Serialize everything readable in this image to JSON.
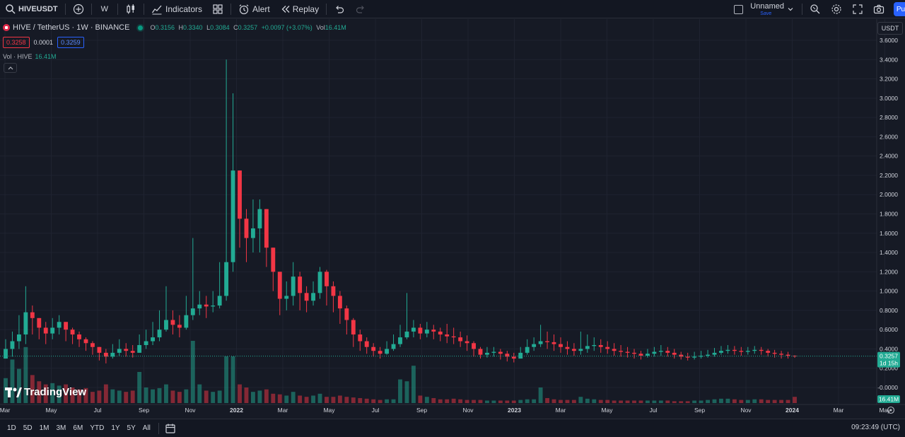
{
  "toolbar": {
    "symbol": "HIVEUSDT",
    "interval": "W",
    "indicators_label": "Indicators",
    "alert_label": "Alert",
    "replay_label": "Replay",
    "layout_name": "Unnamed",
    "layout_save": "Save",
    "publish_label": "Pu"
  },
  "legend": {
    "title": "HIVE / TetherUS · 1W · BINANCE",
    "open_label": "O",
    "open": "0.3156",
    "high_label": "H",
    "high": "0.3340",
    "low_label": "L",
    "low": "0.3084",
    "close_label": "C",
    "close": "0.3257",
    "change": "+0.0097 (+3.07%)",
    "vol_label": "Vol",
    "vol": "16.41M"
  },
  "quote": {
    "sell": "0.3258",
    "spread": "0.0001",
    "buy": "0.3259"
  },
  "volume_legend": {
    "label": "Vol · HIVE",
    "value": "16.41M"
  },
  "brand": "TradingView",
  "axis": {
    "currency": "USDT",
    "last_price": "0.3257",
    "countdown": "1d 15h",
    "last_volume": "16.41M"
  },
  "bottom": {
    "ranges": [
      "1D",
      "5D",
      "1M",
      "3M",
      "6M",
      "YTD",
      "1Y",
      "5Y",
      "All"
    ],
    "clock": "09:23:49 (UTC)"
  },
  "colors": {
    "up": "#22ab94",
    "down": "#f23645",
    "bg": "#161a25",
    "grid": "#1f2330",
    "accent": "#2962ff"
  },
  "chart_data": {
    "type": "candlestick",
    "interval": "1W",
    "ylim": [
      -0.0,
      3.6
    ],
    "yticks": [
      "3.6000",
      "3.4000",
      "3.2000",
      "3.0000",
      "2.8000",
      "2.6000",
      "2.4000",
      "2.2000",
      "2.0000",
      "1.8000",
      "1.6000",
      "1.4000",
      "1.2000",
      "1.0000",
      "0.8000",
      "0.6000",
      "0.4000",
      "0.2000",
      "-0.0000"
    ],
    "xticks": [
      {
        "label": "Mar",
        "bold": false
      },
      {
        "label": "May",
        "bold": false
      },
      {
        "label": "Jul",
        "bold": false
      },
      {
        "label": "Sep",
        "bold": false
      },
      {
        "label": "Nov",
        "bold": false
      },
      {
        "label": "2022",
        "bold": true
      },
      {
        "label": "Mar",
        "bold": false
      },
      {
        "label": "May",
        "bold": false
      },
      {
        "label": "Jul",
        "bold": false
      },
      {
        "label": "Sep",
        "bold": false
      },
      {
        "label": "Nov",
        "bold": false
      },
      {
        "label": "2023",
        "bold": true
      },
      {
        "label": "Mar",
        "bold": false
      },
      {
        "label": "May",
        "bold": false
      },
      {
        "label": "Jul",
        "bold": false
      },
      {
        "label": "Sep",
        "bold": false
      },
      {
        "label": "Nov",
        "bold": false
      },
      {
        "label": "2024",
        "bold": true
      },
      {
        "label": "Mar",
        "bold": false
      },
      {
        "label": "May",
        "bold": false
      }
    ],
    "closes": [
      0.4,
      0.48,
      0.55,
      0.78,
      0.72,
      0.62,
      0.56,
      0.62,
      0.68,
      0.6,
      0.55,
      0.5,
      0.46,
      0.42,
      0.36,
      0.32,
      0.36,
      0.4,
      0.38,
      0.36,
      0.44,
      0.48,
      0.52,
      0.6,
      0.7,
      0.65,
      0.62,
      0.75,
      0.82,
      0.86,
      0.84,
      0.85,
      0.95,
      1.3,
      2.25,
      1.75,
      1.55,
      1.65,
      1.85,
      1.45,
      1.2,
      0.92,
      0.95,
      1.15,
      0.98,
      0.9,
      0.98,
      1.2,
      1.05,
      0.95,
      0.82,
      0.7,
      0.55,
      0.48,
      0.42,
      0.38,
      0.35,
      0.4,
      0.45,
      0.52,
      0.58,
      0.62,
      0.56,
      0.6,
      0.58,
      0.55,
      0.53,
      0.52,
      0.48,
      0.46,
      0.4,
      0.34,
      0.36,
      0.37,
      0.35,
      0.32,
      0.3,
      0.36,
      0.42,
      0.45,
      0.48,
      0.47,
      0.45,
      0.42,
      0.4,
      0.38,
      0.4,
      0.43,
      0.44,
      0.42,
      0.4,
      0.38,
      0.37,
      0.36,
      0.35,
      0.33,
      0.35,
      0.37,
      0.38,
      0.36,
      0.34,
      0.32,
      0.31,
      0.32,
      0.33,
      0.34,
      0.36,
      0.38,
      0.39,
      0.38,
      0.37,
      0.38,
      0.39,
      0.38,
      0.36,
      0.35,
      0.34,
      0.33,
      0.3257
    ],
    "highs": [
      0.5,
      0.58,
      0.75,
      1.05,
      0.85,
      0.72,
      0.68,
      0.72,
      0.75,
      0.68,
      0.62,
      0.58,
      0.52,
      0.48,
      0.42,
      0.4,
      0.45,
      0.5,
      0.46,
      0.44,
      0.55,
      0.6,
      0.68,
      0.8,
      1.05,
      0.8,
      0.75,
      0.95,
      1.55,
      1.0,
      0.95,
      1.0,
      1.3,
      3.4,
      3.05,
      2.1,
      1.85,
      1.95,
      1.95,
      1.7,
      1.45,
      1.2,
      1.1,
      1.3,
      1.2,
      1.05,
      1.1,
      1.25,
      1.22,
      1.1,
      1.0,
      0.85,
      0.72,
      0.6,
      0.52,
      0.46,
      0.42,
      0.48,
      0.55,
      0.65,
      0.98,
      0.7,
      0.66,
      0.68,
      0.65,
      0.62,
      0.66,
      0.62,
      0.58,
      0.54,
      0.48,
      0.42,
      0.42,
      0.42,
      0.4,
      0.38,
      0.36,
      0.42,
      0.5,
      0.52,
      0.65,
      0.58,
      0.55,
      0.52,
      0.48,
      0.46,
      0.58,
      0.55,
      0.52,
      0.5,
      0.48,
      0.46,
      0.44,
      0.42,
      0.4,
      0.38,
      0.4,
      0.42,
      0.44,
      0.42,
      0.4,
      0.37,
      0.36,
      0.37,
      0.38,
      0.39,
      0.41,
      0.43,
      0.44,
      0.43,
      0.42,
      0.42,
      0.43,
      0.42,
      0.4,
      0.39,
      0.38,
      0.37,
      0.334
    ],
    "lows": [
      0.3,
      0.32,
      0.4,
      0.45,
      0.55,
      0.5,
      0.45,
      0.5,
      0.55,
      0.48,
      0.45,
      0.42,
      0.38,
      0.34,
      0.28,
      0.25,
      0.3,
      0.33,
      0.32,
      0.31,
      0.36,
      0.4,
      0.44,
      0.48,
      0.58,
      0.55,
      0.52,
      0.6,
      0.7,
      0.75,
      0.72,
      0.78,
      0.82,
      0.9,
      1.2,
      1.45,
      1.3,
      1.4,
      1.4,
      1.25,
      1.0,
      0.75,
      0.8,
      0.85,
      0.8,
      0.78,
      0.85,
      0.92,
      0.85,
      0.78,
      0.66,
      0.55,
      0.42,
      0.38,
      0.35,
      0.32,
      0.3,
      0.34,
      0.38,
      0.42,
      0.5,
      0.52,
      0.5,
      0.52,
      0.5,
      0.48,
      0.46,
      0.45,
      0.42,
      0.38,
      0.32,
      0.3,
      0.31,
      0.32,
      0.29,
      0.27,
      0.26,
      0.3,
      0.34,
      0.38,
      0.42,
      0.4,
      0.38,
      0.36,
      0.34,
      0.33,
      0.34,
      0.36,
      0.38,
      0.36,
      0.35,
      0.33,
      0.32,
      0.31,
      0.3,
      0.29,
      0.31,
      0.32,
      0.33,
      0.32,
      0.3,
      0.29,
      0.28,
      0.29,
      0.3,
      0.31,
      0.32,
      0.34,
      0.35,
      0.34,
      0.33,
      0.34,
      0.35,
      0.34,
      0.32,
      0.31,
      0.3,
      0.3,
      0.3084
    ],
    "volume_relative": [
      0.4,
      0.7,
      0.55,
      0.9,
      0.45,
      0.35,
      0.3,
      0.32,
      0.28,
      0.3,
      0.25,
      0.22,
      0.24,
      0.18,
      0.2,
      0.3,
      0.22,
      0.2,
      0.18,
      0.2,
      0.5,
      0.25,
      0.22,
      0.24,
      0.3,
      0.2,
      0.18,
      0.22,
      1.0,
      0.3,
      0.2,
      0.18,
      0.2,
      0.75,
      0.75,
      0.3,
      0.25,
      0.18,
      0.2,
      0.22,
      0.15,
      0.14,
      0.12,
      0.18,
      0.12,
      0.1,
      0.12,
      0.15,
      0.1,
      0.1,
      0.12,
      0.1,
      0.09,
      0.08,
      0.07,
      0.06,
      0.05,
      0.06,
      0.06,
      0.38,
      0.35,
      0.6,
      0.12,
      0.1,
      0.08,
      0.06,
      0.06,
      0.07,
      0.06,
      0.05,
      0.05,
      0.05,
      0.04,
      0.04,
      0.04,
      0.04,
      0.04,
      0.05,
      0.06,
      0.06,
      0.25,
      0.08,
      0.06,
      0.05,
      0.05,
      0.05,
      0.1,
      0.07,
      0.06,
      0.05,
      0.05,
      0.04,
      0.04,
      0.04,
      0.04,
      0.04,
      0.04,
      0.04,
      0.04,
      0.04,
      0.03,
      0.03,
      0.03,
      0.04,
      0.04,
      0.05,
      0.06,
      0.07,
      0.07,
      0.06,
      0.05,
      0.05,
      0.06,
      0.06,
      0.05,
      0.05,
      0.05,
      0.05,
      0.1
    ]
  }
}
